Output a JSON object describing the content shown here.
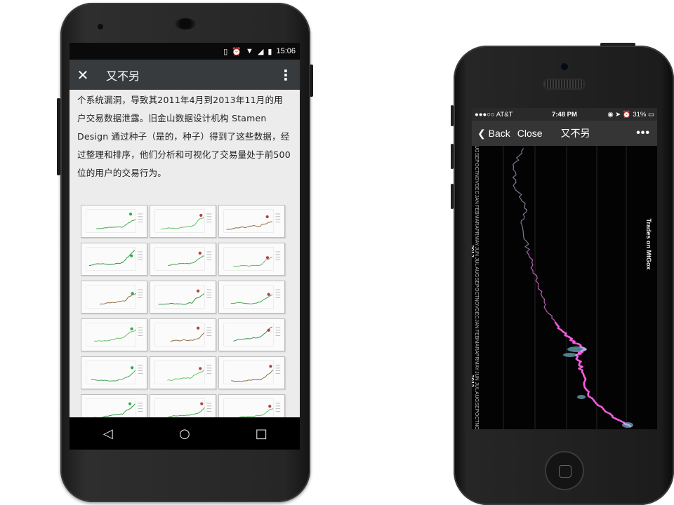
{
  "android": {
    "status_time": "15:06",
    "app_title": "又不另",
    "article_text": "个系统漏洞，导致其2011年4月到2013年11月的用户交易数据泄露。旧金山数据设计机构 Stamen Design 通过种子（是的，种子）得到了这些数据，经过整理和排序，他们分析和可视化了交易量处于前500位的用户的交易行为。",
    "thumbnail_count": 20,
    "icons": {
      "close": "close-icon",
      "menu": "more-vert-icon",
      "back": "nav-back-icon",
      "home": "nav-home-icon",
      "recents": "nav-recents-icon"
    }
  },
  "iphone": {
    "carrier": "●●●○○ AT&T",
    "time": "7:48 PM",
    "battery": "31%",
    "back_label": "Back",
    "close_label": "Close",
    "title": "又不另",
    "more_label": "•••"
  },
  "chart_data": {
    "type": "line",
    "title": "Trades on MtGox",
    "orientation": "vertical-time",
    "time_labels": [
      "AUG",
      "SEP",
      "OCT",
      "NOV",
      "DEC",
      "JAN",
      "FEB",
      "MAR",
      "APR",
      "MAY",
      "JUN",
      "JUL",
      "AUG",
      "SEP",
      "OCT",
      "NOV",
      "DEC",
      "JAN",
      "FEB",
      "MAR",
      "APR",
      "MAY",
      "JUN",
      "JUL",
      "AUG",
      "SEP",
      "OCT",
      "NOV"
    ],
    "year_labels": [
      "2012",
      "2013"
    ],
    "colors": {
      "early": "#8a7d9a",
      "mid": "#c66ac8",
      "peak": "#ff5fe6",
      "highlight": "#8ee6ff"
    },
    "grid": true
  }
}
